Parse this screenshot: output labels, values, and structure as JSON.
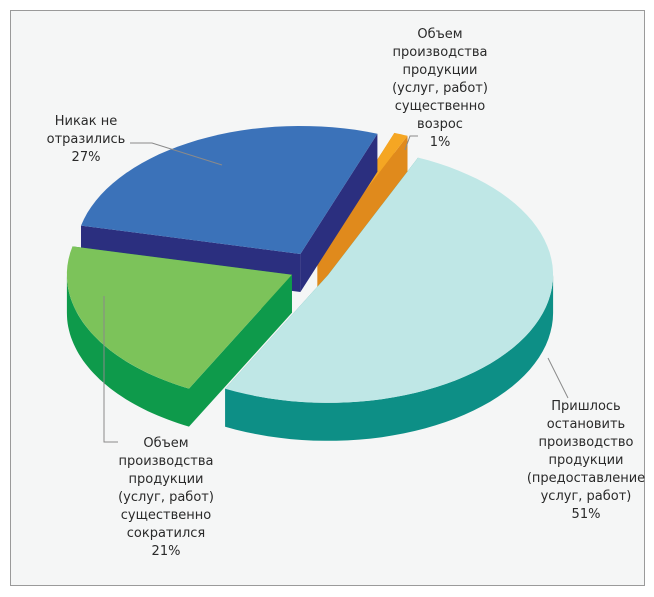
{
  "chart_data": {
    "type": "pie3d",
    "categories": [
      "Объем\nпроизводства\nпродукции\n(услуг, работ)\nсущественно\nвозрос",
      "Пришлось\nостановить\nпроизводство\nпродукции\n(предоставление\nуслуг, работ)",
      "Объем\nпроизводства\nпродукции\n(услуг, работ)\nсущественно\nсократился",
      "Никак не\nотразились"
    ],
    "values": [
      1,
      51,
      21,
      27
    ],
    "value_labels": [
      "1%",
      "51%",
      "21%",
      "27%"
    ],
    "colors": [
      "#f5a623",
      "#bfe7e6",
      "#7cc35a",
      "#3b72b9"
    ],
    "side_colors": [
      "#e08a1c",
      "#0d8f86",
      "#0e9a4b",
      "#2b2f7f"
    ]
  }
}
